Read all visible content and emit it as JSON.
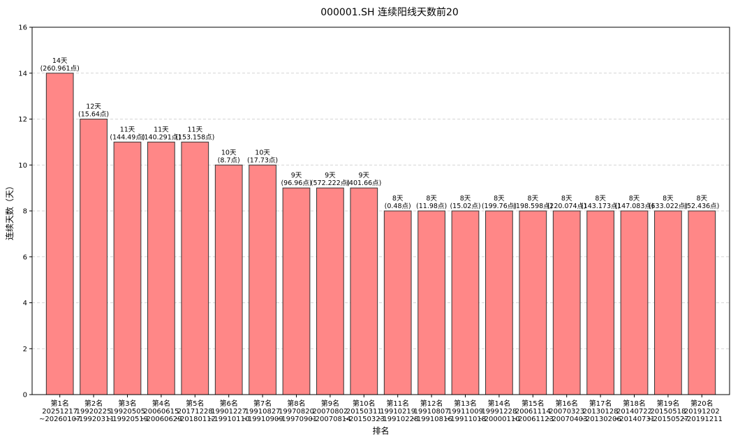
{
  "chart_data": {
    "type": "bar",
    "title": "000001.SH 连续阳线天数前20",
    "xlabel": "排名",
    "ylabel": "连续天数（天）",
    "ylim": [
      0,
      16
    ],
    "yticks": [
      0,
      2,
      4,
      6,
      8,
      10,
      12,
      14,
      16
    ],
    "grid": "y-dashed",
    "bar_color": "#ff8787",
    "bar_edge_color": "#333333",
    "categories": [
      [
        "第1名",
        "20251217",
        "~20260107"
      ],
      [
        "第2名",
        "19920225",
        "~19920311"
      ],
      [
        "第3名",
        "19920505",
        "~19920519"
      ],
      [
        "第4名",
        "20060615",
        "~20060629"
      ],
      [
        "第5名",
        "20171228",
        "~20180112"
      ],
      [
        "第6名",
        "19901227",
        "~19910110"
      ],
      [
        "第7名",
        "19910827",
        "~19910909"
      ],
      [
        "第8名",
        "19970820",
        "~19970901"
      ],
      [
        "第9名",
        "20070802",
        "~20070814"
      ],
      [
        "第10名",
        "20150311",
        "~20150323"
      ],
      [
        "第11名",
        "19910219",
        "~19910228"
      ],
      [
        "第12名",
        "19910807",
        "~19910816"
      ],
      [
        "第13名",
        "19911009",
        "~19911018"
      ],
      [
        "第14名",
        "19991228",
        "~20000110"
      ],
      [
        "第15名",
        "20061114",
        "~20061123"
      ],
      [
        "第16名",
        "20070323",
        "~20070403"
      ],
      [
        "第17名",
        "20130128",
        "~20130206"
      ],
      [
        "第18名",
        "20140722",
        "~20140731"
      ],
      [
        "第19名",
        "20150518",
        "~20150527"
      ],
      [
        "第20名",
        "20191202",
        "~20191211"
      ]
    ],
    "values": [
      14,
      12,
      11,
      11,
      11,
      10,
      10,
      9,
      9,
      9,
      8,
      8,
      8,
      8,
      8,
      8,
      8,
      8,
      8,
      8
    ],
    "data_labels": [
      [
        "14天",
        "(260.961点)"
      ],
      [
        "12天",
        "(15.64点)"
      ],
      [
        "11天",
        "(144.49点)"
      ],
      [
        "11天",
        "(140.291点)"
      ],
      [
        "11天",
        "(153.158点)"
      ],
      [
        "10天",
        "(8.7点)"
      ],
      [
        "10天",
        "(17.73点)"
      ],
      [
        "9天",
        "(96.96点)"
      ],
      [
        "9天",
        "(572.222点)"
      ],
      [
        "9天",
        "(401.66点)"
      ],
      [
        "8天",
        "(0.48点)"
      ],
      [
        "8天",
        "(11.98点)"
      ],
      [
        "8天",
        "(15.02点)"
      ],
      [
        "8天",
        "(199.76点)"
      ],
      [
        "8天",
        "(198.598点)"
      ],
      [
        "8天",
        "(220.074点)"
      ],
      [
        "8天",
        "(143.173点)"
      ],
      [
        "8天",
        "(147.083点)"
      ],
      [
        "8天",
        "(633.022点)"
      ],
      [
        "8天",
        "(52.436点)"
      ]
    ]
  }
}
